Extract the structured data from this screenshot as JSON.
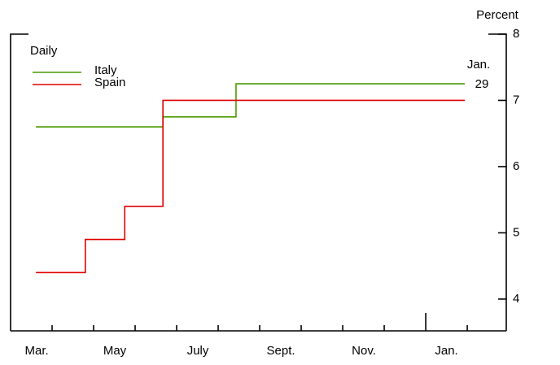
{
  "chart_data": {
    "type": "line",
    "step": "post",
    "legend_title": "Daily",
    "y_label": "Percent",
    "annotation": [
      "Jan.",
      "29"
    ],
    "xlim": [
      0,
      11.94
    ],
    "xticks": [
      {
        "value": 0.63,
        "label": "Mar."
      },
      {
        "value": 2.51,
        "label": "May"
      },
      {
        "value": 4.51,
        "label": "July"
      },
      {
        "value": 6.51,
        "label": "Sept."
      },
      {
        "value": 8.51,
        "label": "Nov."
      },
      {
        "value": 10.5,
        "label": "Jan."
      }
    ],
    "xminor": [
      1,
      2,
      3,
      4,
      5,
      6,
      7,
      8,
      9,
      10,
      11
    ],
    "year_tick": 10,
    "ylim": [
      3.52,
      8
    ],
    "yticks": [
      4,
      5,
      6,
      7,
      8
    ],
    "series": [
      {
        "name": "Italy",
        "color": "#4a9a00",
        "x": [
          0.61,
          3.67,
          5.43,
          10.94
        ],
        "values": [
          6.6,
          6.75,
          7.25,
          7.25
        ]
      },
      {
        "name": "Spain",
        "color": "#e00000",
        "x": [
          0.61,
          1.8,
          2.75,
          3.67,
          10.94
        ],
        "values": [
          4.4,
          4.9,
          5.4,
          7.0,
          7.0
        ]
      }
    ]
  }
}
